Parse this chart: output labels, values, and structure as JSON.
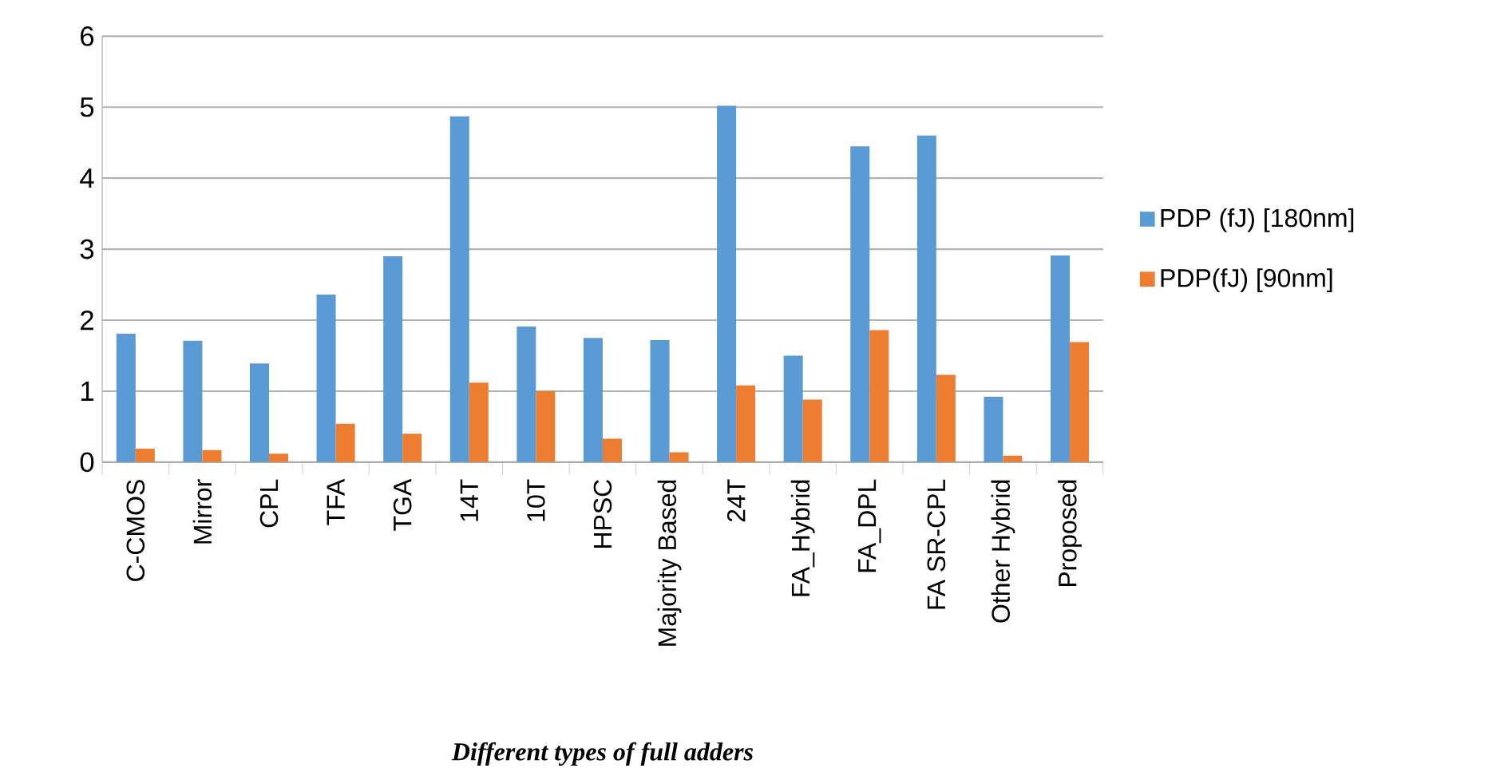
{
  "chart_data": {
    "type": "bar",
    "xlabel": "Different types of full adders",
    "categories": [
      "C-CMOS",
      "Mirror",
      "CPL",
      "TFA",
      "TGA",
      "14T",
      "10T",
      "HPSC",
      "Majority Based",
      "24T",
      "FA_Hybrid",
      "FA_DPL",
      "FA SR-CPL",
      "Other Hybrid",
      "Proposed"
    ],
    "series": [
      {
        "name": "PDP (fJ) [180nm]",
        "color": "#5b9bd5",
        "values": [
          1.81,
          1.71,
          1.39,
          2.36,
          2.9,
          4.87,
          1.91,
          1.75,
          1.72,
          5.02,
          1.5,
          4.45,
          4.6,
          0.92,
          2.91
        ]
      },
      {
        "name": "PDP(fJ) [90nm]",
        "color": "#ed7d31",
        "values": [
          0.19,
          0.17,
          0.12,
          0.54,
          0.4,
          1.12,
          1.0,
          0.33,
          0.14,
          1.08,
          0.88,
          1.86,
          1.23,
          0.09,
          1.69
        ]
      }
    ],
    "ylim": [
      0,
      6
    ],
    "yticks": [
      0,
      1,
      2,
      3,
      4,
      5,
      6
    ],
    "grid": "y",
    "legend": "right"
  }
}
